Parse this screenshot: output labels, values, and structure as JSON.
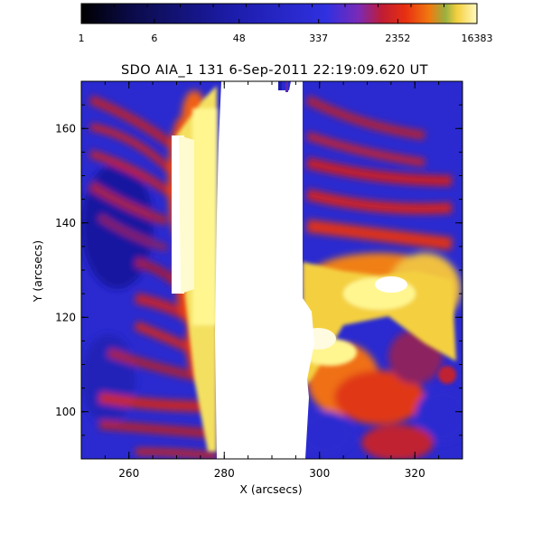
{
  "title": "SDO AIA_1 131  6-Sep-2011 22:19:09.620 UT",
  "colorbar": {
    "ticks": [
      "1",
      "6",
      "48",
      "337",
      "2352",
      "16383"
    ],
    "scale": "log",
    "range": [
      1,
      16383
    ],
    "stops": [
      "#000000",
      "#0a0a46",
      "#1c1caa",
      "#2a2ad8",
      "#7a2ab8",
      "#c01c34",
      "#e83010",
      "#f07a10",
      "#f4c038",
      "#fff690"
    ]
  },
  "axes": {
    "xlabel": "X (arcsecs)",
    "ylabel": "Y (arcsecs)",
    "xticks": [
      "260",
      "280",
      "300",
      "320"
    ],
    "yticks": [
      "100",
      "120",
      "140",
      "160"
    ],
    "xrange": [
      250,
      330
    ],
    "yrange": [
      90,
      170
    ]
  },
  "colors": {
    "background_plasma": "#2828c8",
    "saturated": "#ffffff",
    "hot": "#fff690",
    "warm": "#f07a10",
    "mid": "#c01c34"
  }
}
